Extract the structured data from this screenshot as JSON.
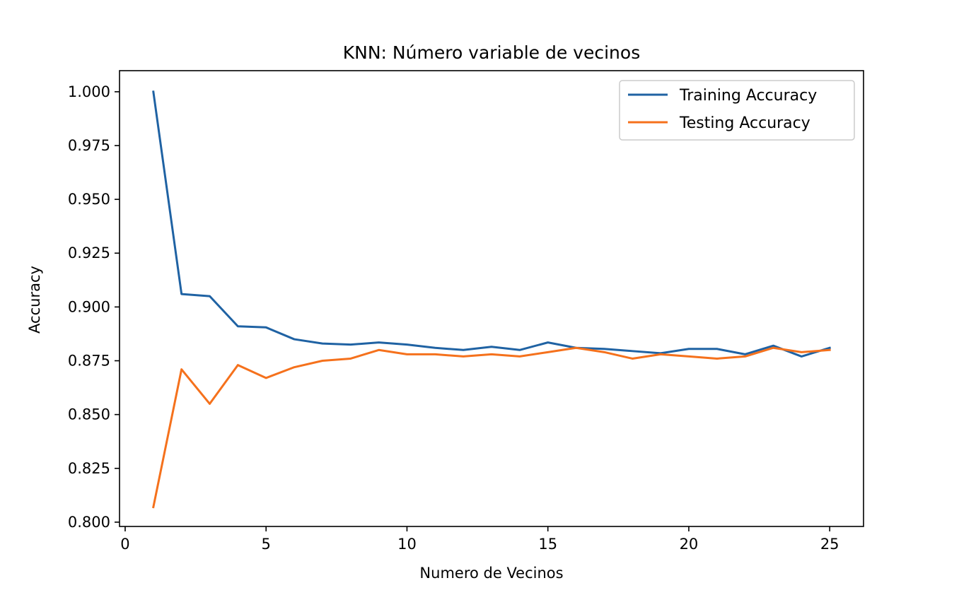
{
  "chart_data": {
    "type": "line",
    "title": "KNN: Número variable de vecinos",
    "xlabel": "Numero de Vecinos",
    "ylabel": "Accuracy",
    "xlim": [
      -0.2,
      26.2
    ],
    "ylim": [
      0.798,
      1.0098
    ],
    "xticks": [
      0,
      5,
      10,
      15,
      20,
      25
    ],
    "xtick_labels": [
      "0",
      "5",
      "10",
      "15",
      "20",
      "25"
    ],
    "yticks": [
      0.8,
      0.825,
      0.85,
      0.875,
      0.9,
      0.925,
      0.95,
      0.975,
      1.0
    ],
    "ytick_labels": [
      "0.800",
      "0.825",
      "0.850",
      "0.875",
      "0.900",
      "0.925",
      "0.950",
      "0.975",
      "1.000"
    ],
    "grid": false,
    "legend_position": "top-right",
    "x": [
      1,
      2,
      3,
      4,
      5,
      6,
      7,
      8,
      9,
      10,
      11,
      12,
      13,
      14,
      15,
      16,
      17,
      18,
      19,
      20,
      21,
      22,
      23,
      24,
      25
    ],
    "series": [
      {
        "name": "Training Accuracy",
        "color": "#1f62a3",
        "values": [
          1.0,
          0.906,
          0.905,
          0.891,
          0.8905,
          0.885,
          0.883,
          0.8825,
          0.8835,
          0.8825,
          0.881,
          0.88,
          0.8815,
          0.88,
          0.8835,
          0.881,
          0.8805,
          0.8795,
          0.8785,
          0.8805,
          0.8805,
          0.878,
          0.882,
          0.877,
          0.881
        ]
      },
      {
        "name": "Testing Accuracy",
        "color": "#f5711c",
        "values": [
          0.807,
          0.871,
          0.855,
          0.873,
          0.867,
          0.872,
          0.875,
          0.876,
          0.88,
          0.878,
          0.878,
          0.877,
          0.878,
          0.877,
          0.879,
          0.881,
          0.879,
          0.876,
          0.878,
          0.877,
          0.876,
          0.877,
          0.881,
          0.879,
          0.88
        ]
      }
    ]
  }
}
